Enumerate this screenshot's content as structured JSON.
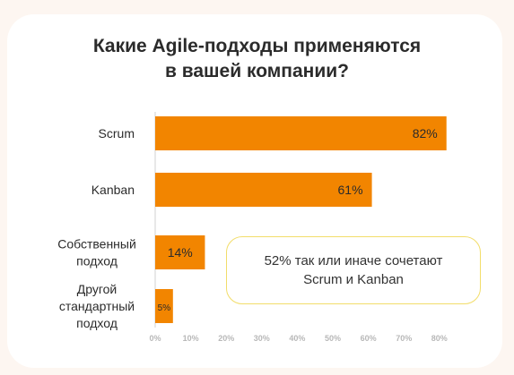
{
  "title": {
    "line1": "Какие Agile-подходы применяются",
    "line2": "в вашей компании?"
  },
  "callout": {
    "line1": "52% так или иначе сочетают",
    "line2": "Scrum и Kanban"
  },
  "colors": {
    "bar": "#f28500",
    "callout_border": "#f2dd6a",
    "background": "#fdf6f1"
  },
  "chart_data": {
    "type": "bar",
    "orientation": "horizontal",
    "categories": [
      [
        "Scrum"
      ],
      [
        "Kanban"
      ],
      [
        "Собственный",
        "подход"
      ],
      [
        "Другой",
        "стандартный",
        "подход"
      ]
    ],
    "values": [
      82,
      61,
      14,
      5
    ],
    "data_labels": [
      "82%",
      "61%",
      "14%",
      "5%"
    ],
    "xlim": [
      0,
      80
    ],
    "x_ticks": [
      "0%",
      "10%",
      "20%",
      "30%",
      "40%",
      "50%",
      "60%",
      "70%",
      "80%"
    ],
    "grid": false
  }
}
